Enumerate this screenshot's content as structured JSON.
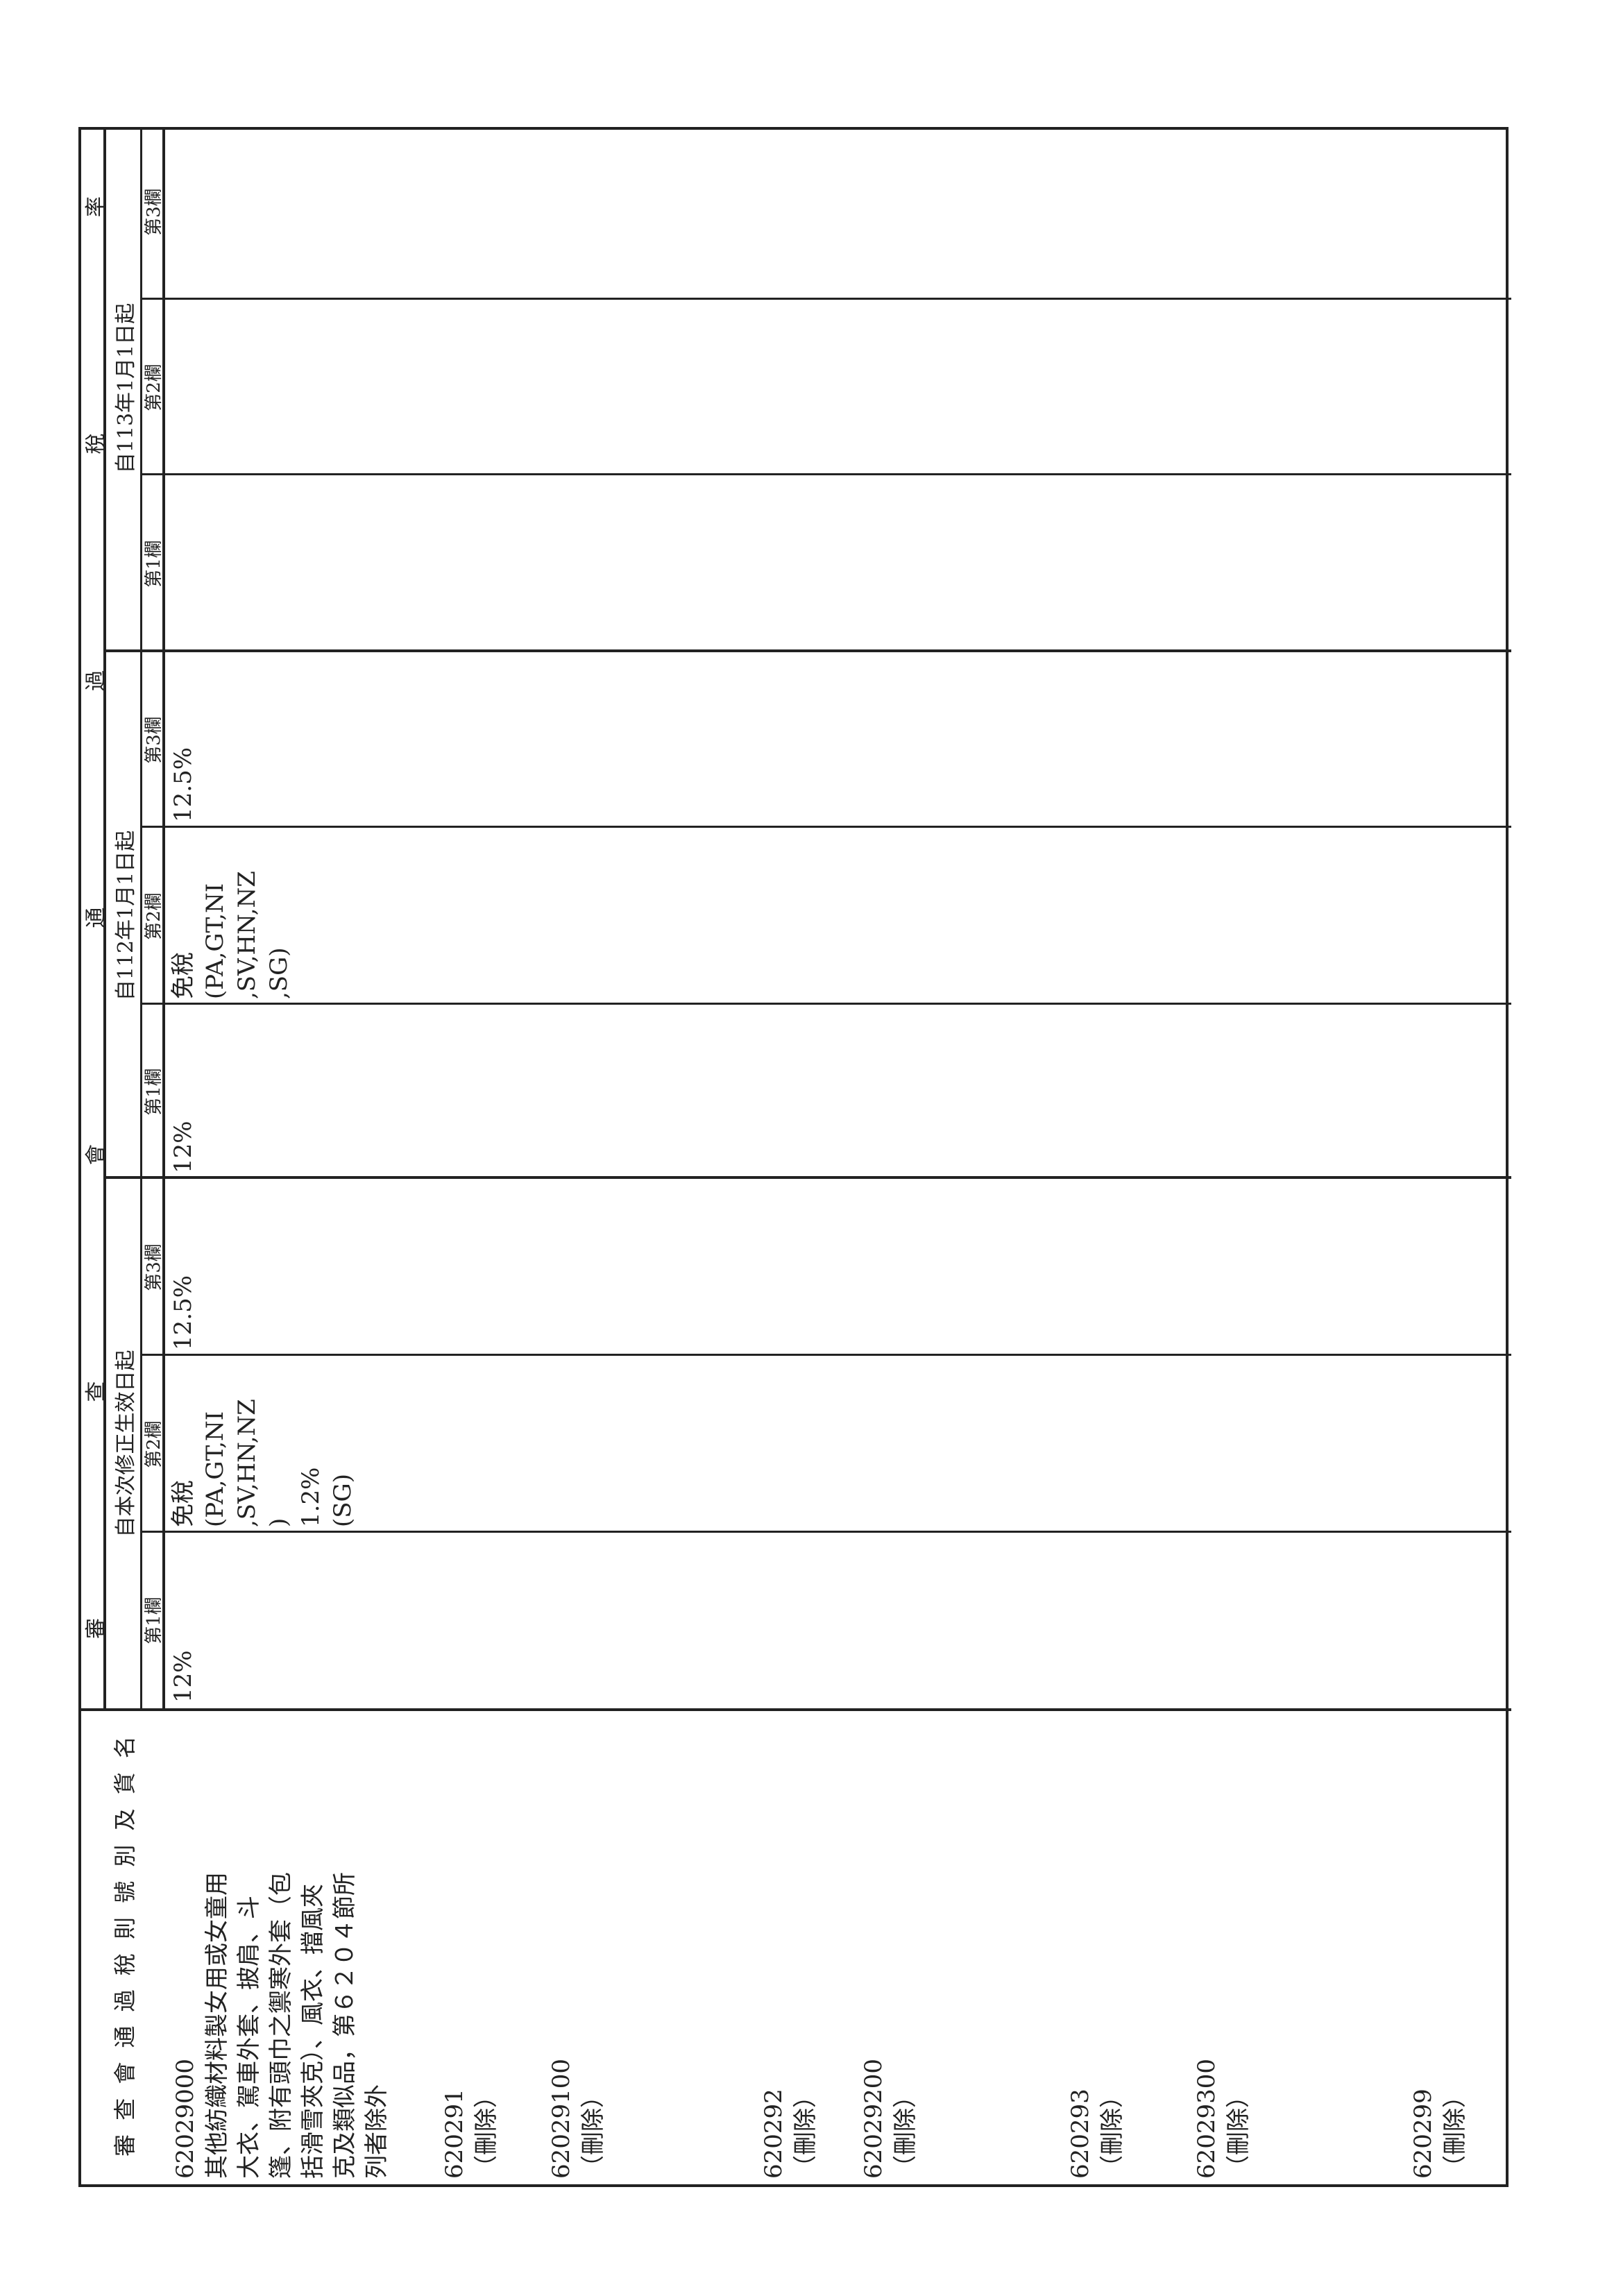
{
  "header": {
    "commodity_title_chars": [
      "審",
      "查",
      "會",
      "通",
      "過",
      "稅",
      "則",
      "號",
      "別",
      "及",
      "貨",
      "名"
    ],
    "rate_title_chars": [
      "審",
      "查",
      "會",
      "通",
      "過",
      "稅",
      "率"
    ],
    "groups": [
      {
        "label": "自本次修正生效日起",
        "columns": [
          "第1欄",
          "第2欄",
          "第3欄"
        ]
      },
      {
        "label": "自112年1月1日起",
        "columns": [
          "第1欄",
          "第2欄",
          "第3欄"
        ]
      },
      {
        "label": "自113年1月1日起",
        "columns": [
          "第1欄",
          "第2欄",
          "第3欄"
        ]
      }
    ]
  },
  "rows": {
    "entries": [
      {
        "code": "62029000",
        "desc": "其他紡織材料製女用或女童用\n大衣、駕車外套、披肩、斗\n篷、附有頭巾之禦寒外套（包\n括滑雪夾克）、風衣、擋風夾\n克及類似品，第６２０４節所\n列者除外"
      },
      {
        "code": "620291",
        "desc": "（刪除）"
      },
      {
        "code": "62029100",
        "desc": "（刪除）"
      },
      {
        "code": "620292",
        "desc": "（刪除）"
      },
      {
        "code": "62029200",
        "desc": "（刪除）"
      },
      {
        "code": "620293",
        "desc": "（刪除）"
      },
      {
        "code": "62029300",
        "desc": "（刪除）"
      },
      {
        "code": "620299",
        "desc": "（刪除）"
      }
    ],
    "rates": [
      "12%",
      "免稅\n(PA,GT,NI\n,SV,HN,NZ\n)\n1.2%\n(SG)",
      "12.5%",
      "12%",
      "免稅\n(PA,GT,NI\n,SV,HN,NZ\n,SG)",
      "12.5%",
      "",
      "",
      ""
    ]
  }
}
